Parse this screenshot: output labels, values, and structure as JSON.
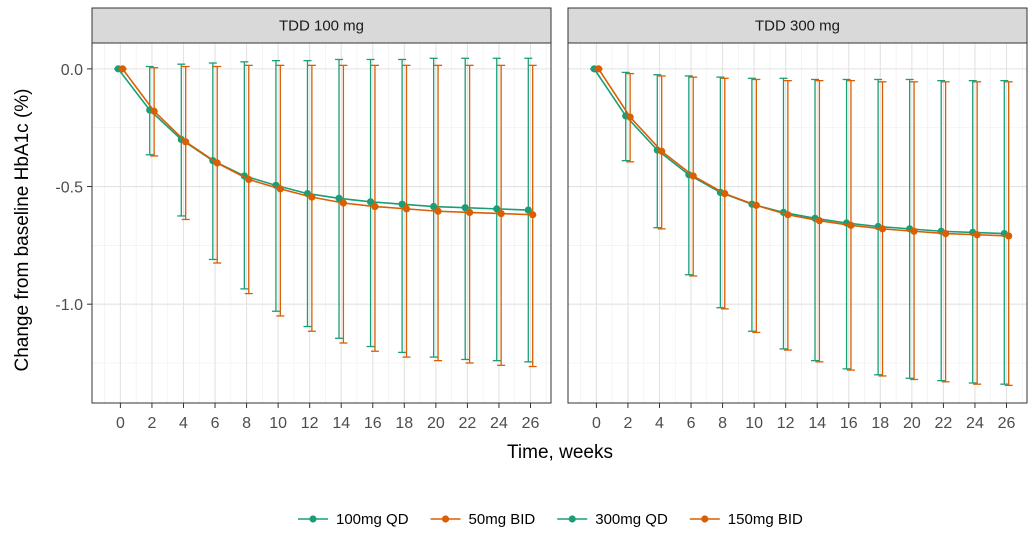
{
  "chart_data": {
    "type": "line",
    "xlabel": "Time, weeks",
    "ylabel": "Change from baseline HbA1c (%)",
    "x_ticks": [
      0,
      2,
      4,
      6,
      8,
      10,
      12,
      14,
      16,
      18,
      20,
      22,
      24,
      26
    ],
    "y_ticks": [
      0.0,
      -0.5,
      -1.0
    ],
    "y_tick_labels": [
      "0.0",
      "-0.5",
      "-1.0"
    ],
    "xlim": [
      -1.8,
      27.3
    ],
    "ylim": [
      -1.42,
      0.11
    ],
    "grid": true,
    "legend_position": "bottom",
    "legend": [
      {
        "label": "100mg QD",
        "color": "#1b9e77"
      },
      {
        "label": "50mg BID",
        "color": "#d95f02"
      },
      {
        "label": "300mg QD",
        "color": "#1b9e77"
      },
      {
        "label": "150mg BID",
        "color": "#d95f02"
      }
    ],
    "panels": [
      {
        "strip": "TDD 100 mg",
        "series": [
          {
            "name": "100mg QD",
            "color": "#1b9e77",
            "x": [
              0,
              2,
              4,
              6,
              8,
              10,
              12,
              14,
              16,
              18,
              20,
              22,
              24,
              26
            ],
            "y": [
              0.0,
              -0.175,
              -0.3,
              -0.39,
              -0.455,
              -0.495,
              -0.53,
              -0.55,
              -0.565,
              -0.575,
              -0.585,
              -0.59,
              -0.595,
              -0.6
            ],
            "lower": [
              0.0,
              -0.365,
              -0.625,
              -0.81,
              -0.935,
              -1.03,
              -1.095,
              -1.145,
              -1.18,
              -1.205,
              -1.225,
              -1.235,
              -1.24,
              -1.245
            ],
            "upper": [
              0.0,
              0.01,
              0.02,
              0.025,
              0.03,
              0.035,
              0.035,
              0.04,
              0.04,
              0.04,
              0.045,
              0.045,
              0.045,
              0.045
            ]
          },
          {
            "name": "50mg BID",
            "color": "#d95f02",
            "x": [
              0,
              2,
              4,
              6,
              8,
              10,
              12,
              14,
              16,
              18,
              20,
              22,
              24,
              26
            ],
            "y": [
              0.0,
              -0.18,
              -0.31,
              -0.4,
              -0.47,
              -0.51,
              -0.545,
              -0.57,
              -0.585,
              -0.595,
              -0.605,
              -0.61,
              -0.615,
              -0.62
            ],
            "lower": [
              0.0,
              -0.37,
              -0.64,
              -0.825,
              -0.955,
              -1.05,
              -1.115,
              -1.165,
              -1.2,
              -1.225,
              -1.24,
              -1.25,
              -1.26,
              -1.265
            ],
            "upper": [
              0.0,
              0.005,
              0.01,
              0.01,
              0.015,
              0.015,
              0.015,
              0.015,
              0.015,
              0.015,
              0.015,
              0.015,
              0.015,
              0.015
            ]
          }
        ]
      },
      {
        "strip": "TDD 300 mg",
        "series": [
          {
            "name": "300mg QD",
            "color": "#1b9e77",
            "x": [
              0,
              2,
              4,
              6,
              8,
              10,
              12,
              14,
              16,
              18,
              20,
              22,
              24,
              26
            ],
            "y": [
              0.0,
              -0.2,
              -0.345,
              -0.45,
              -0.525,
              -0.575,
              -0.61,
              -0.635,
              -0.655,
              -0.67,
              -0.68,
              -0.69,
              -0.695,
              -0.7
            ],
            "lower": [
              0.0,
              -0.39,
              -0.675,
              -0.875,
              -1.015,
              -1.115,
              -1.19,
              -1.24,
              -1.275,
              -1.3,
              -1.315,
              -1.325,
              -1.335,
              -1.34
            ],
            "upper": [
              0.0,
              -0.015,
              -0.025,
              -0.03,
              -0.035,
              -0.04,
              -0.04,
              -0.045,
              -0.045,
              -0.045,
              -0.045,
              -0.05,
              -0.05,
              -0.05
            ]
          },
          {
            "name": "150mg BID",
            "color": "#d95f02",
            "x": [
              0,
              2,
              4,
              6,
              8,
              10,
              12,
              14,
              16,
              18,
              20,
              22,
              24,
              26
            ],
            "y": [
              0.0,
              -0.205,
              -0.35,
              -0.455,
              -0.53,
              -0.58,
              -0.62,
              -0.645,
              -0.665,
              -0.68,
              -0.69,
              -0.7,
              -0.705,
              -0.71
            ],
            "lower": [
              0.0,
              -0.395,
              -0.68,
              -0.88,
              -1.02,
              -1.12,
              -1.195,
              -1.245,
              -1.28,
              -1.305,
              -1.32,
              -1.33,
              -1.34,
              -1.345
            ],
            "upper": [
              0.0,
              -0.02,
              -0.03,
              -0.035,
              -0.04,
              -0.045,
              -0.05,
              -0.05,
              -0.05,
              -0.055,
              -0.055,
              -0.055,
              -0.055,
              -0.055
            ]
          }
        ]
      }
    ]
  }
}
